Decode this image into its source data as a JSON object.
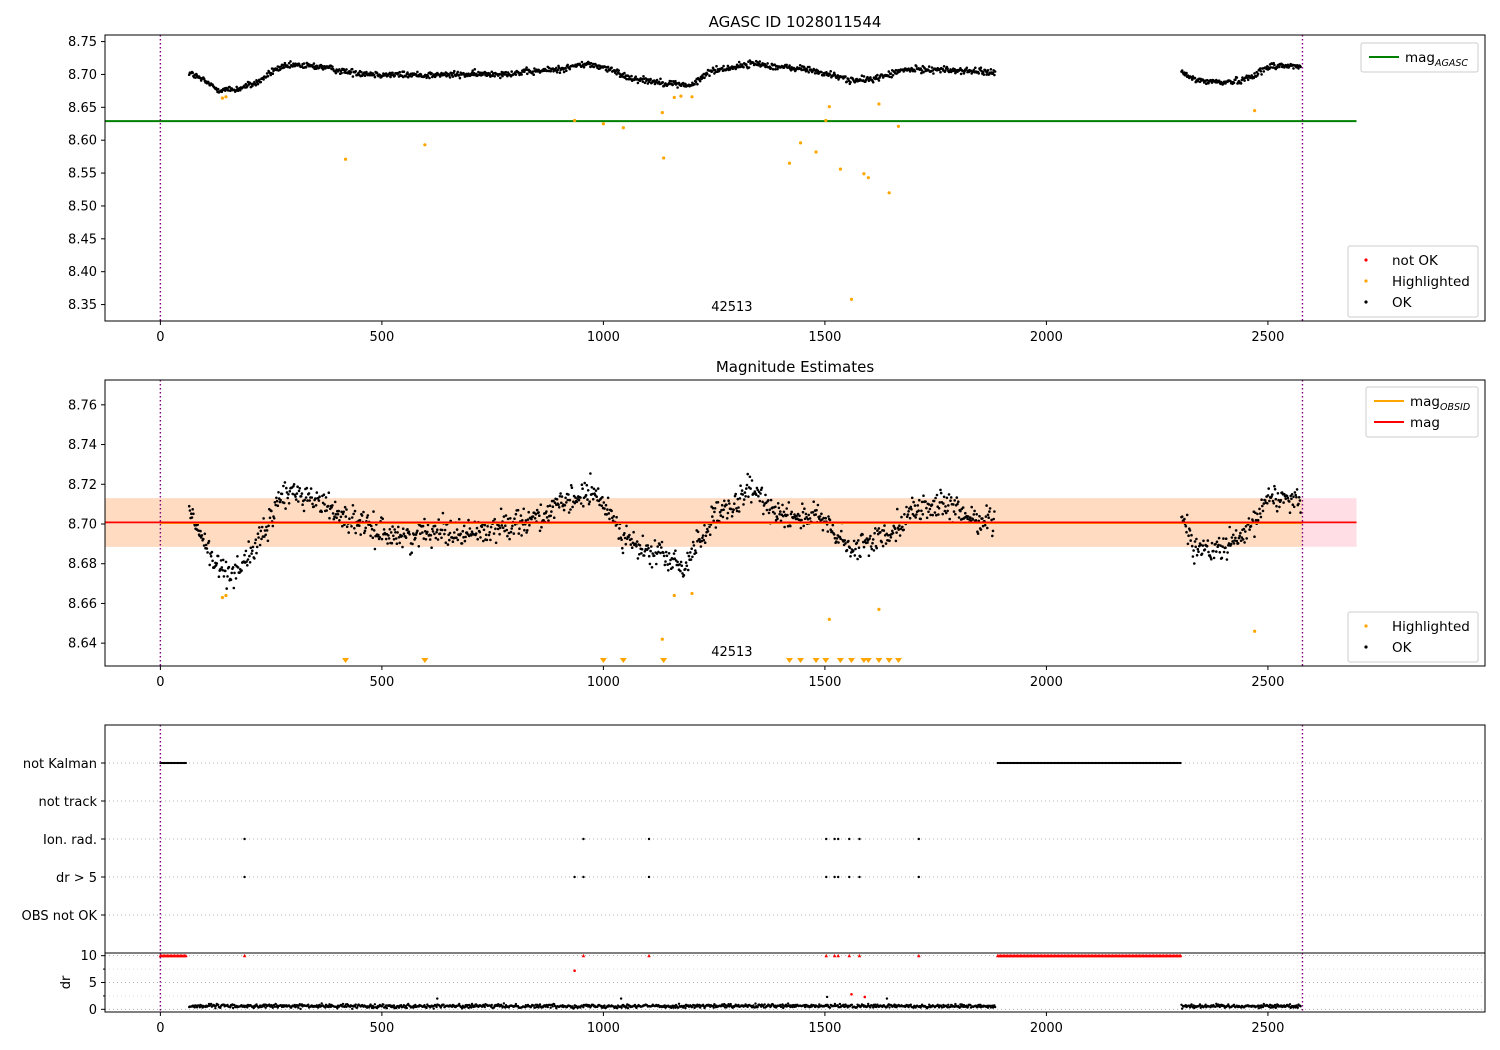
{
  "colors": {
    "ok": "#000000",
    "highlighted": "#ffa500",
    "not_ok": "#ff0000",
    "mag_agasc": "#008000",
    "mag_obsid": "#ffa500",
    "mag": "#ff0000",
    "obs_vline": "#800080",
    "band_mag": "#ffc0cb",
    "band_obsid": "#ffdab9",
    "grid": "#b0b0b0"
  },
  "chart_data": [
    {
      "type": "scatter",
      "title": "AGASC ID 1028011544",
      "annotation": "42513",
      "xlim": [
        -125,
        2990
      ],
      "ylim": [
        8.325,
        8.76
      ],
      "x_ticks": [
        0,
        500,
        1000,
        1500,
        2000,
        2500
      ],
      "y_ticks": [
        8.35,
        8.4,
        8.45,
        8.5,
        8.55,
        8.6,
        8.65,
        8.7,
        8.75
      ],
      "lines": [
        {
          "name": "mag_AGASC",
          "type": "hline",
          "y": 8.629,
          "xrange": [
            -125,
            2700
          ]
        }
      ],
      "vlines": [
        0,
        2578
      ],
      "legends": [
        {
          "position": "upper right",
          "entries": [
            {
              "label": "mag",
              "sub": "AGASC",
              "kind": "line",
              "color": "#008000"
            }
          ]
        },
        {
          "position": "lower right",
          "entries": [
            {
              "label": "not OK",
              "kind": "marker",
              "color": "#ff0000"
            },
            {
              "label": "Highlighted",
              "kind": "marker",
              "color": "#ffa500"
            },
            {
              "label": "OK",
              "kind": "marker",
              "color": "#000000"
            }
          ]
        }
      ],
      "ok_segments": [
        {
          "range": [
            65,
            1885
          ],
          "trend": [
            [
              65,
              8.703
            ],
            [
              100,
              8.69
            ],
            [
              130,
              8.677
            ],
            [
              170,
              8.677
            ],
            [
              220,
              8.688
            ],
            [
              260,
              8.708
            ],
            [
              300,
              8.714
            ],
            [
              360,
              8.712
            ],
            [
              420,
              8.704
            ],
            [
              500,
              8.7
            ],
            [
              600,
              8.699
            ],
            [
              700,
              8.7
            ],
            [
              800,
              8.702
            ],
            [
              900,
              8.708
            ],
            [
              960,
              8.716
            ],
            [
              1000,
              8.711
            ],
            [
              1060,
              8.695
            ],
            [
              1130,
              8.688
            ],
            [
              1200,
              8.683
            ],
            [
              1240,
              8.705
            ],
            [
              1300,
              8.712
            ],
            [
              1340,
              8.717
            ],
            [
              1400,
              8.711
            ],
            [
              1460,
              8.708
            ],
            [
              1520,
              8.698
            ],
            [
              1570,
              8.69
            ],
            [
              1620,
              8.695
            ],
            [
              1680,
              8.707
            ],
            [
              1740,
              8.708
            ],
            [
              1800,
              8.706
            ],
            [
              1885,
              8.703
            ]
          ],
          "noise": 0.0045
        },
        {
          "range": [
            2305,
            2575
          ],
          "trend": [
            [
              2305,
              8.702
            ],
            [
              2340,
              8.691
            ],
            [
              2400,
              8.688
            ],
            [
              2440,
              8.691
            ],
            [
              2470,
              8.7
            ],
            [
              2510,
              8.714
            ],
            [
              2575,
              8.712
            ]
          ],
          "noise": 0.0045
        }
      ],
      "highlighted": [
        [
          140,
          8.664
        ],
        [
          148,
          8.666
        ],
        [
          418,
          8.571
        ],
        [
          597,
          8.593
        ],
        [
          935,
          8.63
        ],
        [
          1000,
          8.625
        ],
        [
          1045,
          8.619
        ],
        [
          1133,
          8.642
        ],
        [
          1136,
          8.573
        ],
        [
          1160,
          8.665
        ],
        [
          1175,
          8.667
        ],
        [
          1200,
          8.666
        ],
        [
          1420,
          8.565
        ],
        [
          1445,
          8.596
        ],
        [
          1480,
          8.582
        ],
        [
          1502,
          8.63
        ],
        [
          1510,
          8.651
        ],
        [
          1535,
          8.556
        ],
        [
          1560,
          8.358
        ],
        [
          1588,
          8.549
        ],
        [
          1598,
          8.543
        ],
        [
          1622,
          8.655
        ],
        [
          1645,
          8.52
        ],
        [
          1666,
          8.621
        ],
        [
          2470,
          8.645
        ]
      ],
      "not_ok": []
    },
    {
      "type": "scatter",
      "title": "Magnitude Estimates",
      "annotation": "42513",
      "xlim": [
        -125,
        2990
      ],
      "ylim": [
        8.6285,
        8.7725
      ],
      "x_ticks": [
        0,
        500,
        1000,
        1500,
        2000,
        2500
      ],
      "y_ticks": [
        8.64,
        8.66,
        8.68,
        8.7,
        8.72,
        8.74,
        8.76
      ],
      "lines": [
        {
          "name": "mag_OBSID",
          "type": "hline",
          "y": 8.7005,
          "xrange": [
            0,
            2578
          ]
        },
        {
          "name": "mag",
          "type": "hline",
          "y": 8.7008,
          "xrange": [
            -125,
            2700
          ]
        }
      ],
      "bands": [
        {
          "name": "mag",
          "y": [
            8.6885,
            8.713
          ],
          "xrange": [
            -125,
            2700
          ]
        },
        {
          "name": "mag_OBSID",
          "y": [
            8.6885,
            8.713
          ],
          "xrange": [
            -125,
            2578
          ]
        }
      ],
      "vlines": [
        0,
        2578
      ],
      "legends": [
        {
          "position": "upper right",
          "entries": [
            {
              "label": "mag",
              "sub": "OBSID",
              "kind": "line",
              "color": "#ffa500"
            },
            {
              "label": "mag",
              "kind": "line",
              "color": "#ff0000"
            }
          ]
        },
        {
          "position": "lower right",
          "entries": [
            {
              "label": "Highlighted",
              "kind": "marker",
              "color": "#ffa500"
            },
            {
              "label": "OK",
              "kind": "marker",
              "color": "#000000"
            }
          ]
        }
      ],
      "ok_segments": [
        {
          "range": [
            65,
            1885
          ],
          "trend": [
            [
              65,
              8.706
            ],
            [
              90,
              8.695
            ],
            [
              120,
              8.68
            ],
            [
              160,
              8.675
            ],
            [
              200,
              8.684
            ],
            [
              240,
              8.697
            ],
            [
              270,
              8.714
            ],
            [
              310,
              8.716
            ],
            [
              370,
              8.71
            ],
            [
              420,
              8.703
            ],
            [
              480,
              8.697
            ],
            [
              560,
              8.693
            ],
            [
              620,
              8.698
            ],
            [
              680,
              8.695
            ],
            [
              740,
              8.697
            ],
            [
              800,
              8.701
            ],
            [
              860,
              8.704
            ],
            [
              920,
              8.711
            ],
            [
              970,
              8.716
            ],
            [
              1010,
              8.708
            ],
            [
              1050,
              8.693
            ],
            [
              1090,
              8.686
            ],
            [
              1130,
              8.685
            ],
            [
              1180,
              8.677
            ],
            [
              1210,
              8.69
            ],
            [
              1250,
              8.703
            ],
            [
              1300,
              8.709
            ],
            [
              1330,
              8.718
            ],
            [
              1380,
              8.708
            ],
            [
              1430,
              8.704
            ],
            [
              1480,
              8.704
            ],
            [
              1520,
              8.696
            ],
            [
              1560,
              8.686
            ],
            [
              1600,
              8.691
            ],
            [
              1640,
              8.695
            ],
            [
              1700,
              8.707
            ],
            [
              1760,
              8.71
            ],
            [
              1820,
              8.704
            ],
            [
              1885,
              8.701
            ]
          ],
          "noise": 0.006
        },
        {
          "range": [
            2305,
            2575
          ],
          "trend": [
            [
              2305,
              8.706
            ],
            [
              2330,
              8.69
            ],
            [
              2370,
              8.686
            ],
            [
              2420,
              8.69
            ],
            [
              2460,
              8.696
            ],
            [
              2500,
              8.714
            ],
            [
              2575,
              8.712
            ]
          ],
          "noise": 0.006
        }
      ],
      "highlighted": [
        [
          140,
          8.663
        ],
        [
          148,
          8.664
        ],
        [
          1133,
          8.642
        ],
        [
          1160,
          8.664
        ],
        [
          1200,
          8.665
        ],
        [
          1510,
          8.652
        ],
        [
          1622,
          8.657
        ],
        [
          2470,
          8.646
        ]
      ],
      "clipped_markers": [
        418,
        597,
        1000,
        1045,
        1136,
        1420,
        1445,
        1480,
        1502,
        1535,
        1560,
        1588,
        1598,
        1622,
        1645,
        1666
      ],
      "not_ok": []
    },
    {
      "type": "scatter",
      "title": "",
      "xlim": [
        -125,
        2990
      ],
      "x_ticks": [
        0,
        500,
        1000,
        1500,
        2000,
        2500
      ],
      "flag_rows": [
        "not Kalman",
        "not track",
        "Ion. rad.",
        "dr > 5",
        "OBS not OK"
      ],
      "flags": {
        "not Kalman": {
          "ranges": [
            [
              0,
              60
            ],
            [
              1890,
              2305
            ]
          ]
        },
        "not track": {
          "points": []
        },
        "Ion. rad.": {
          "points": [
            190,
            955,
            1103,
            1503,
            1522,
            1530,
            1555,
            1578,
            1712
          ]
        },
        "dr > 5": {
          "points": [
            190,
            935,
            955,
            1103,
            1503,
            1522,
            1530,
            1555,
            1578,
            1712
          ]
        },
        "OBS not OK": {
          "points": []
        }
      },
      "dr": {
        "ylabel": "dr",
        "ylim": [
          -0.5,
          10.5
        ],
        "y_ticks": [
          0,
          5,
          10
        ],
        "minor_y_ticks": [
          2.5,
          7.5
        ],
        "ok_segments": [
          {
            "range": [
              65,
              1885
            ],
            "base": 0.6,
            "noise": 0.35
          },
          {
            "range": [
              2305,
              2575
            ],
            "base": 0.6,
            "noise": 0.35
          }
        ],
        "ok_extra": [
          [
            625,
            2.0
          ],
          [
            1505,
            2.3
          ],
          [
            1640,
            2.0
          ],
          [
            1040,
            2.0
          ]
        ],
        "not_ok": [
          [
            935,
            7.2
          ],
          [
            1560,
            2.8
          ],
          [
            1590,
            2.3
          ]
        ],
        "capped_not_ok": {
          "ranges": [
            [
              0,
              60
            ],
            [
              1890,
              2305
            ]
          ],
          "points": [
            190,
            955,
            1103,
            1503,
            1522,
            1530,
            1555,
            1578,
            1712
          ],
          "value": 10
        }
      }
    }
  ]
}
